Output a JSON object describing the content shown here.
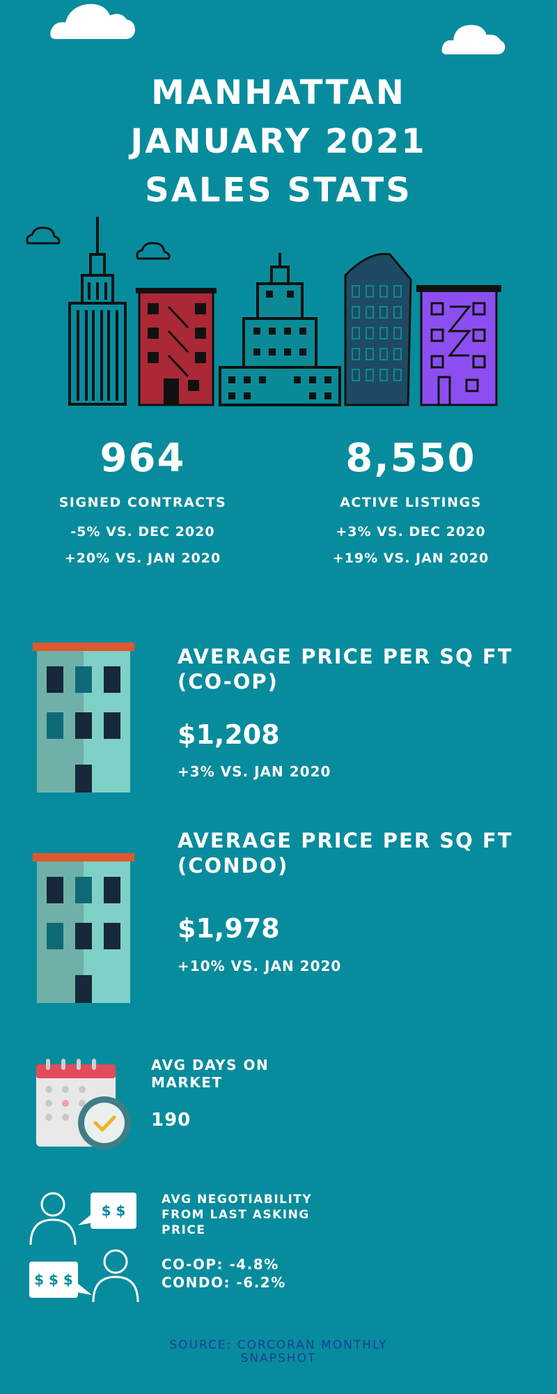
{
  "title": {
    "line1": "MANHATTAN",
    "line2": "JANUARY 2021",
    "line3": "SALES STATS"
  },
  "stats": [
    {
      "value": "964",
      "label": "SIGNED CONTRACTS",
      "change1": "-5% VS. DEC 2020",
      "change2": "+20% VS. JAN 2020"
    },
    {
      "value": "8,550",
      "label": "ACTIVE LISTINGS",
      "change1": "+3% VS. DEC 2020",
      "change2": "+19% VS. JAN 2020"
    }
  ],
  "coop": {
    "title": "AVERAGE PRICE PER SQ FT (CO-OP)",
    "value": "$1,208",
    "change": "+3% VS. JAN 2020"
  },
  "condo": {
    "title": "AVERAGE PRICE PER SQ FT (CONDO)",
    "value": "$1,978",
    "change": "+10% VS. JAN 2020"
  },
  "days": {
    "title": "AVG DAYS ON MARKET",
    "value": "190"
  },
  "negotiability": {
    "title": "AVG NEGOTIABILITY FROM LAST ASKING PRICE",
    "coop": "CO-OP: -4.8%",
    "condo": "CONDO: -6.2%",
    "bubble1": "$ $",
    "bubble2": "$ $ $"
  },
  "source": {
    "line1": "SOURCE: CORCORAN MONTHLY",
    "line2": "SNAPSHOT"
  },
  "colors": {
    "background": "#078c9d",
    "red_building": "#ab2836",
    "purple_building": "#8c4ef0",
    "teal_building": "#0b8a96",
    "source_text": "#1f3b9a",
    "roof": "#e0582e"
  },
  "icons": [
    "cloud-icon",
    "skyline-illustration",
    "building-icon",
    "calendar-clock-icon",
    "person-icon",
    "speech-bubble-icon"
  ]
}
